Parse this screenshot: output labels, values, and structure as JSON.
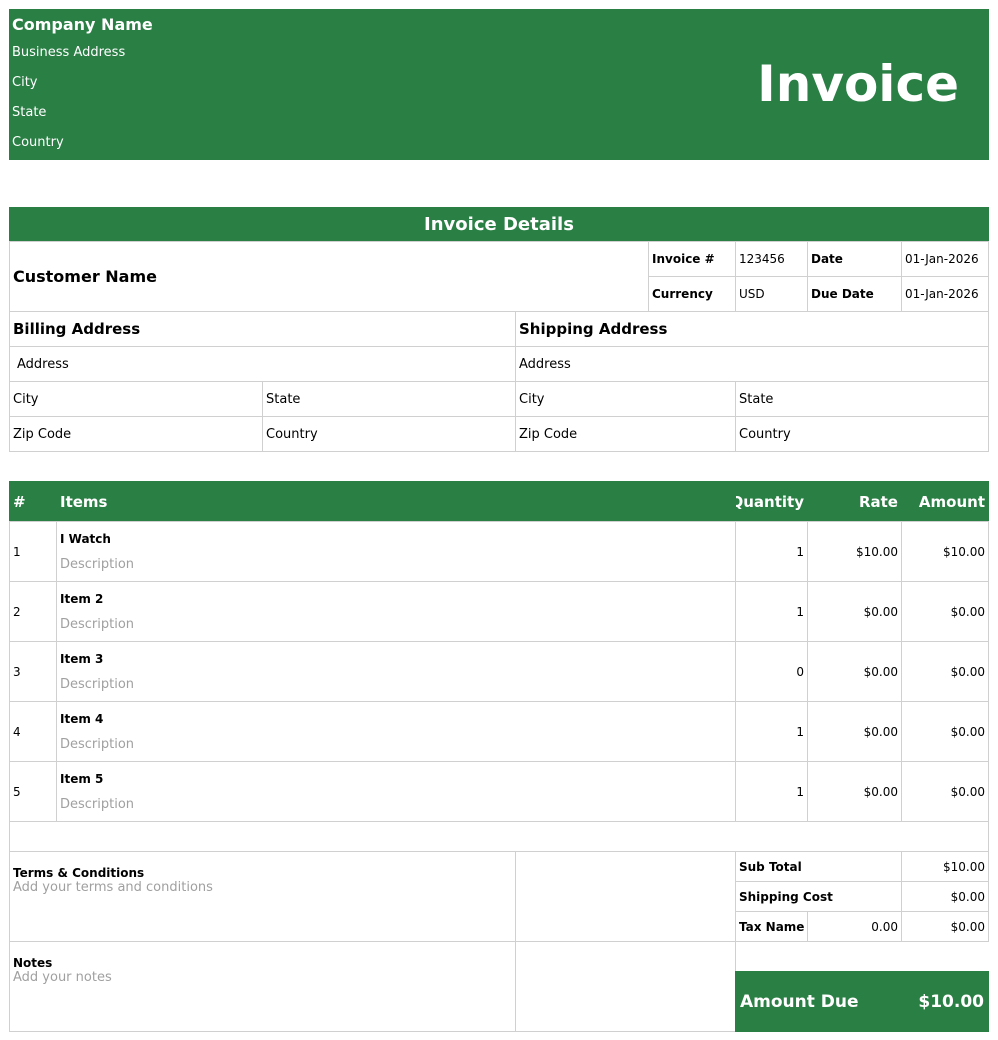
{
  "brand_color": "#2a7f45",
  "header": {
    "company": "Company Name",
    "address": "Business Address",
    "city": "City",
    "state": "State",
    "country": "Country",
    "title": "Invoice"
  },
  "details": {
    "title": "Invoice Details",
    "customer": "Customer Name",
    "invoice_no_label": "Invoice #",
    "invoice_no": "123456",
    "date_label": "Date",
    "date": "01-Jan-2026",
    "currency_label": "Currency",
    "currency": "USD",
    "due_label": "Due Date",
    "due": "01-Jan-2026"
  },
  "billing": {
    "title": "Billing Address",
    "address": "Address",
    "city": "City",
    "state": "State",
    "zip": "Zip Code",
    "country": "Country"
  },
  "shipping": {
    "title": "Shipping Address",
    "address": "Address",
    "city": "City",
    "state": "State",
    "zip": "Zip Code",
    "country": "Country"
  },
  "items": {
    "headers": {
      "num": "#",
      "item": "Items",
      "qty": "Quantity",
      "rate": "Rate",
      "amount": "Amount"
    },
    "rows": [
      {
        "n": "1",
        "name": "I Watch",
        "desc": "Description",
        "qty": "1",
        "rate": "$10.00",
        "amount": "$10.00"
      },
      {
        "n": "2",
        "name": "Item 2",
        "desc": "Description",
        "qty": "1",
        "rate": "$0.00",
        "amount": "$0.00"
      },
      {
        "n": "3",
        "name": "Item 3",
        "desc": "Description",
        "qty": "0",
        "rate": "$0.00",
        "amount": "$0.00"
      },
      {
        "n": "4",
        "name": "Item 4",
        "desc": "Description",
        "qty": "1",
        "rate": "$0.00",
        "amount": "$0.00"
      },
      {
        "n": "5",
        "name": "Item 5",
        "desc": "Description",
        "qty": "1",
        "rate": "$0.00",
        "amount": "$0.00"
      }
    ]
  },
  "terms": {
    "title": "Terms & Conditions",
    "placeholder": "Add your terms and conditions"
  },
  "notes": {
    "title": "Notes",
    "placeholder": "Add your notes"
  },
  "totals": {
    "subtotal_label": "Sub Total",
    "subtotal": "$10.00",
    "shipping_label": "Shipping Cost",
    "shipping": "$0.00",
    "tax_label": "Tax Name",
    "tax_rate": "0.00",
    "tax": "$0.00",
    "due_label": "Amount Due",
    "due": "$10.00"
  }
}
